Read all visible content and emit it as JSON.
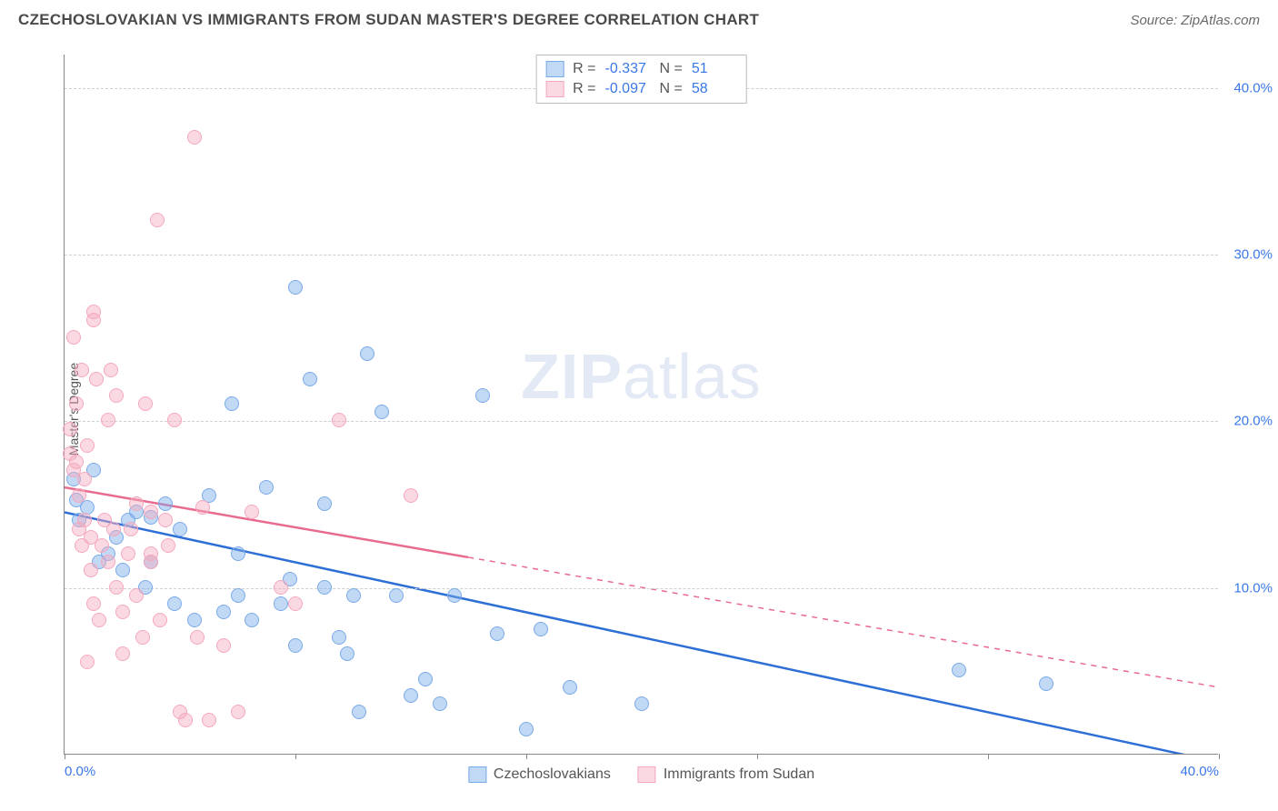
{
  "title": "CZECHOSLOVAKIAN VS IMMIGRANTS FROM SUDAN MASTER'S DEGREE CORRELATION CHART",
  "source": "Source: ZipAtlas.com",
  "watermark_zip": "ZIP",
  "watermark_atlas": "atlas",
  "y_axis_label": "Master's Degree",
  "chart": {
    "type": "scatter",
    "xlim": [
      0,
      40
    ],
    "ylim": [
      0,
      42
    ],
    "x_ticks": [
      0,
      8,
      16,
      24,
      32,
      40
    ],
    "x_tick_labels_shown": {
      "0": "0.0%",
      "40": "40.0%"
    },
    "y_gridlines": [
      10,
      20,
      30,
      40
    ],
    "y_tick_labels": {
      "10": "10.0%",
      "20": "20.0%",
      "30": "30.0%",
      "40": "40.0%"
    },
    "background_color": "#ffffff",
    "grid_color": "#d0d0d0",
    "axis_color": "#888888",
    "tick_label_color": "#3b78e7",
    "point_radius": 8,
    "series": [
      {
        "name": "Czechoslovakians",
        "fill": "rgba(120, 170, 235, 0.45)",
        "stroke": "#7aaae8",
        "line_color": "#2e6fd6",
        "line_width": 2.5,
        "line_dash": "none",
        "trend": {
          "x1": 0,
          "y1": 14.5,
          "x2": 40,
          "y2": -0.5
        },
        "R": "-0.337",
        "N": "51",
        "points": [
          [
            0.3,
            16.5
          ],
          [
            0.4,
            15.2
          ],
          [
            0.5,
            14.0
          ],
          [
            0.8,
            14.8
          ],
          [
            1.0,
            17.0
          ],
          [
            1.2,
            11.5
          ],
          [
            1.5,
            12.0
          ],
          [
            1.8,
            13.0
          ],
          [
            2.0,
            11.0
          ],
          [
            2.2,
            14.0
          ],
          [
            2.5,
            14.5
          ],
          [
            2.8,
            10.0
          ],
          [
            3.0,
            14.2
          ],
          [
            3.0,
            11.5
          ],
          [
            3.5,
            15.0
          ],
          [
            3.8,
            9.0
          ],
          [
            4.0,
            13.5
          ],
          [
            4.5,
            8.0
          ],
          [
            5.0,
            15.5
          ],
          [
            5.5,
            8.5
          ],
          [
            5.8,
            21.0
          ],
          [
            6.0,
            9.5
          ],
          [
            6.0,
            12.0
          ],
          [
            6.5,
            8.0
          ],
          [
            7.0,
            16.0
          ],
          [
            7.5,
            9.0
          ],
          [
            7.8,
            10.5
          ],
          [
            8.0,
            6.5
          ],
          [
            8.0,
            28.0
          ],
          [
            8.5,
            22.5
          ],
          [
            9.0,
            15.0
          ],
          [
            9.0,
            10.0
          ],
          [
            9.5,
            7.0
          ],
          [
            9.8,
            6.0
          ],
          [
            10.0,
            9.5
          ],
          [
            10.2,
            2.5
          ],
          [
            10.5,
            24.0
          ],
          [
            11.0,
            20.5
          ],
          [
            11.5,
            9.5
          ],
          [
            12.0,
            3.5
          ],
          [
            12.5,
            4.5
          ],
          [
            13.0,
            3.0
          ],
          [
            13.5,
            9.5
          ],
          [
            14.5,
            21.5
          ],
          [
            15.0,
            7.2
          ],
          [
            16.0,
            1.5
          ],
          [
            16.5,
            7.5
          ],
          [
            17.5,
            4.0
          ],
          [
            20.0,
            3.0
          ],
          [
            31.0,
            5.0
          ],
          [
            34.0,
            4.2
          ]
        ]
      },
      {
        "name": "Immigrants from Sudan",
        "fill": "rgba(245, 170, 190, 0.45)",
        "stroke": "#f4a8bd",
        "line_color": "#e86b8f",
        "line_width": 2.5,
        "line_dash": "dashed_after",
        "trend": {
          "x1": 0,
          "y1": 16.0,
          "x2": 40,
          "y2": 4.0,
          "solid_until_x": 14
        },
        "R": "-0.097",
        "N": "58",
        "points": [
          [
            0.2,
            18.0
          ],
          [
            0.2,
            19.5
          ],
          [
            0.3,
            17.0
          ],
          [
            0.3,
            25.0
          ],
          [
            0.4,
            17.5
          ],
          [
            0.4,
            21.0
          ],
          [
            0.5,
            15.5
          ],
          [
            0.5,
            13.5
          ],
          [
            0.6,
            12.5
          ],
          [
            0.6,
            23.0
          ],
          [
            0.7,
            16.5
          ],
          [
            0.7,
            14.0
          ],
          [
            0.8,
            18.5
          ],
          [
            0.8,
            5.5
          ],
          [
            0.9,
            11.0
          ],
          [
            0.9,
            13.0
          ],
          [
            1.0,
            26.0
          ],
          [
            1.0,
            26.5
          ],
          [
            1.0,
            9.0
          ],
          [
            1.1,
            22.5
          ],
          [
            1.2,
            8.0
          ],
          [
            1.3,
            12.5
          ],
          [
            1.4,
            14.0
          ],
          [
            1.5,
            20.0
          ],
          [
            1.5,
            11.5
          ],
          [
            1.6,
            23.0
          ],
          [
            1.7,
            13.5
          ],
          [
            1.8,
            10.0
          ],
          [
            1.8,
            21.5
          ],
          [
            2.0,
            8.5
          ],
          [
            2.0,
            6.0
          ],
          [
            2.2,
            12.0
          ],
          [
            2.3,
            13.5
          ],
          [
            2.5,
            9.5
          ],
          [
            2.5,
            15.0
          ],
          [
            2.7,
            7.0
          ],
          [
            2.8,
            21.0
          ],
          [
            3.0,
            12.0
          ],
          [
            3.0,
            14.5
          ],
          [
            3.0,
            11.5
          ],
          [
            3.2,
            32.0
          ],
          [
            3.3,
            8.0
          ],
          [
            3.5,
            14.0
          ],
          [
            3.6,
            12.5
          ],
          [
            3.8,
            20.0
          ],
          [
            4.0,
            2.5
          ],
          [
            4.2,
            2.0
          ],
          [
            4.5,
            37.0
          ],
          [
            4.6,
            7.0
          ],
          [
            4.8,
            14.8
          ],
          [
            5.0,
            2.0
          ],
          [
            5.5,
            6.5
          ],
          [
            6.0,
            2.5
          ],
          [
            6.5,
            14.5
          ],
          [
            7.5,
            10.0
          ],
          [
            8.0,
            9.0
          ],
          [
            9.5,
            20.0
          ],
          [
            12.0,
            15.5
          ]
        ]
      }
    ]
  },
  "stats_box": {
    "R_label": "R =",
    "N_label": "N ="
  },
  "bottom_legend": {
    "items": [
      "Czechoslovakians",
      "Immigrants from Sudan"
    ]
  }
}
